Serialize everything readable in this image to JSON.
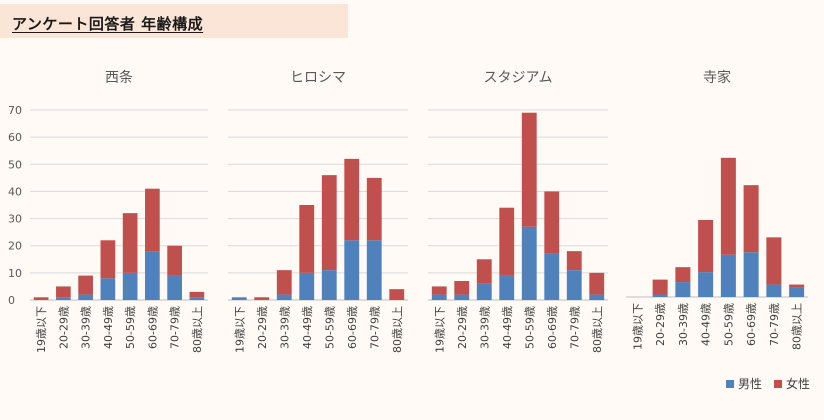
{
  "header": {
    "title": "アンケート回答者 年齢構成"
  },
  "colors": {
    "male": "#4f81bd",
    "female": "#c0504d",
    "grid": "#d9d9d9",
    "axis": "#bfbfbf"
  },
  "legend": {
    "male_label": "男性",
    "female_label": "女性"
  },
  "chart_data": [
    {
      "type": "bar",
      "stacked": true,
      "title": "西条",
      "categories": [
        "19歳以下",
        "20-29歳",
        "30-39歳",
        "40-49歳",
        "50-59歳",
        "60-69歳",
        "70-79歳",
        "80歳以上"
      ],
      "series": [
        {
          "name": "男性",
          "values": [
            0,
            1,
            2,
            8,
            10,
            18,
            9,
            1
          ]
        },
        {
          "name": "女性",
          "values": [
            1,
            4,
            7,
            14,
            22,
            23,
            11,
            2
          ]
        }
      ],
      "ylim": [
        0,
        70
      ],
      "yticks": [
        "0",
        "10",
        "20",
        "30",
        "40",
        "50",
        "60",
        "70"
      ],
      "grid": true,
      "show_y_labels": true
    },
    {
      "type": "bar",
      "stacked": true,
      "title": "ヒロシマ",
      "categories": [
        "19歳以下",
        "20-29歳",
        "30-39歳",
        "40-49歳",
        "50-59歳",
        "60-69歳",
        "70-79歳",
        "80歳以上"
      ],
      "series": [
        {
          "name": "男性",
          "values": [
            1,
            0,
            2,
            10,
            11,
            22,
            22,
            0
          ]
        },
        {
          "name": "女性",
          "values": [
            0,
            1,
            9,
            25,
            35,
            30,
            23,
            4
          ]
        }
      ],
      "ylim": [
        0,
        70
      ],
      "grid": true,
      "show_y_labels": false
    },
    {
      "type": "bar",
      "stacked": true,
      "title": "スタジアム",
      "categories": [
        "19歳以下",
        "20-29歳",
        "30-39歳",
        "40-49歳",
        "50-59歳",
        "60-69歳",
        "70-79歳",
        "80歳以上"
      ],
      "series": [
        {
          "name": "男性",
          "values": [
            2,
            2,
            6,
            9,
            27,
            17,
            11,
            2
          ]
        },
        {
          "name": "女性",
          "values": [
            3,
            5,
            9,
            25,
            42,
            23,
            7,
            8
          ]
        }
      ],
      "ylim": [
        0,
        70
      ],
      "grid": true,
      "show_y_labels": false
    },
    {
      "type": "bar",
      "stacked": true,
      "title": "寺家",
      "categories": [
        "19歳以下",
        "20-29歳",
        "30-39歳",
        "40-49歳",
        "50-59歳",
        "60-69歳",
        "70-79歳",
        "80歳以上"
      ],
      "series": [
        {
          "name": "男性",
          "values": [
            0,
            1,
            6,
            10,
            17,
            18,
            5,
            4
          ]
        },
        {
          "name": "女性",
          "values": [
            0,
            6,
            6,
            21,
            39,
            27,
            19,
            1
          ]
        }
      ],
      "ylim": [
        0,
        70
      ],
      "grid": false,
      "show_y_labels": false
    }
  ]
}
